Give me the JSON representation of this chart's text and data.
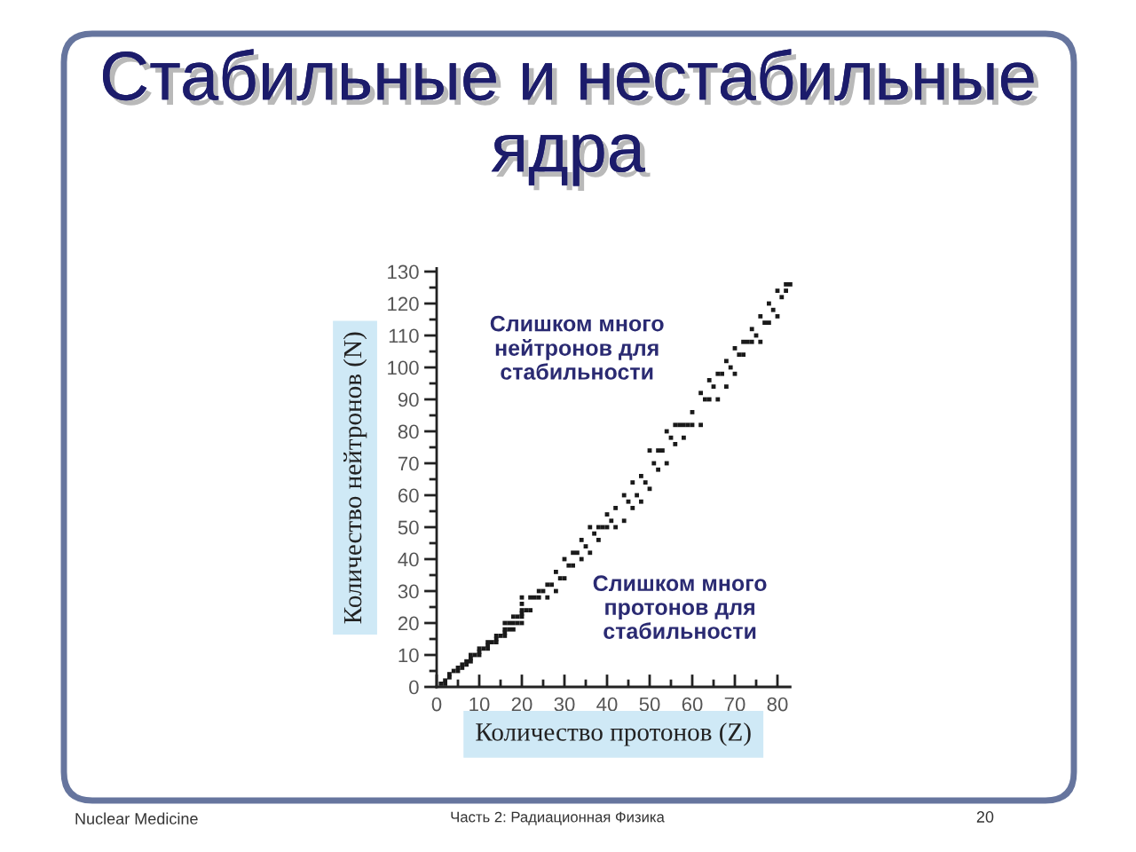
{
  "chart_data": {
    "type": "scatter",
    "title": "Стабильные и нестабильные\nядра",
    "xlabel": "Количество протонов (Z)",
    "ylabel": "Количество нейтронов (N)",
    "x": [
      1,
      2,
      2,
      3,
      3,
      4,
      5,
      5,
      6,
      6,
      7,
      7,
      8,
      8,
      8,
      9,
      10,
      10,
      10,
      11,
      12,
      12,
      12,
      13,
      14,
      14,
      14,
      15,
      16,
      16,
      16,
      16,
      17,
      17,
      18,
      18,
      18,
      19,
      19,
      20,
      20,
      20,
      20,
      20,
      20,
      21,
      22,
      22,
      23,
      24,
      24,
      25,
      26,
      26,
      27,
      28,
      28,
      29,
      30,
      30,
      31,
      32,
      32,
      33,
      34,
      34,
      35,
      36,
      36,
      37,
      38,
      38,
      39,
      40,
      40,
      41,
      42,
      42,
      44,
      44,
      45,
      46,
      46,
      47,
      48,
      48,
      49,
      50,
      50,
      51,
      52,
      52,
      53,
      54,
      54,
      55,
      56,
      56,
      57,
      58,
      58,
      59,
      60,
      60,
      62,
      62,
      63,
      64,
      64,
      65,
      66,
      66,
      67,
      68,
      68,
      69,
      70,
      70,
      71,
      72,
      72,
      73,
      74,
      74,
      75,
      76,
      76,
      77,
      78,
      78,
      79,
      80,
      80,
      81,
      82,
      82,
      83
    ],
    "values": [
      1,
      1,
      2,
      3,
      4,
      5,
      5,
      6,
      6,
      7,
      7,
      8,
      8,
      9,
      10,
      10,
      10,
      11,
      12,
      12,
      12,
      13,
      14,
      14,
      14,
      15,
      16,
      16,
      16,
      17,
      18,
      20,
      18,
      20,
      18,
      20,
      22,
      20,
      22,
      20,
      22,
      23,
      24,
      26,
      28,
      24,
      24,
      28,
      28,
      28,
      30,
      30,
      28,
      32,
      32,
      30,
      36,
      34,
      34,
      40,
      38,
      38,
      42,
      42,
      40,
      46,
      44,
      42,
      50,
      48,
      46,
      50,
      50,
      50,
      54,
      52,
      50,
      56,
      52,
      60,
      58,
      56,
      64,
      60,
      58,
      66,
      64,
      62,
      74,
      70,
      68,
      74,
      74,
      70,
      80,
      78,
      76,
      82,
      82,
      78,
      82,
      82,
      82,
      86,
      82,
      92,
      90,
      90,
      96,
      94,
      90,
      98,
      98,
      94,
      102,
      100,
      98,
      106,
      104,
      104,
      108,
      108,
      108,
      112,
      110,
      108,
      116,
      114,
      114,
      120,
      118,
      116,
      124,
      122,
      124,
      126,
      126
    ],
    "color": "#1a1a1a",
    "marker": "square",
    "xlim": [
      0,
      83
    ],
    "ylim": [
      0,
      131
    ],
    "xticks": [
      0,
      {
        "value": 5,
        "label": null
      },
      10,
      {
        "value": 15,
        "label": null
      },
      20,
      {
        "value": 25,
        "label": null
      },
      30,
      {
        "value": 35,
        "label": null
      },
      40,
      {
        "value": 45,
        "label": null
      },
      50,
      {
        "value": 55,
        "label": null
      },
      60,
      {
        "value": 65,
        "label": null
      },
      70,
      {
        "value": 75,
        "label": null
      },
      80
    ],
    "yticks": [
      0,
      {
        "value": 5,
        "label": null
      },
      10,
      {
        "value": 15,
        "label": null
      },
      20,
      {
        "value": 25,
        "label": null
      },
      30,
      {
        "value": 35,
        "label": null
      },
      40,
      {
        "value": 45,
        "label": null
      },
      50,
      {
        "value": 55,
        "label": null
      },
      60,
      {
        "value": 65,
        "label": null
      },
      70,
      {
        "value": 75,
        "label": null
      },
      80,
      {
        "value": 85,
        "label": null
      },
      90,
      {
        "value": 95,
        "label": null
      },
      100,
      {
        "value": 105,
        "label": null
      },
      110,
      {
        "value": 115,
        "label": null
      },
      120,
      {
        "value": 125,
        "label": null
      },
      130
    ],
    "grid": false,
    "legend": false,
    "annotations": [
      "Слишком много\nнейтронов для\nстабильности",
      "Слишком много\nпротонов для\nстабильности",
      "Nuclear Medicine",
      "Часть 2: Радиационная Физика",
      "20"
    ]
  }
}
